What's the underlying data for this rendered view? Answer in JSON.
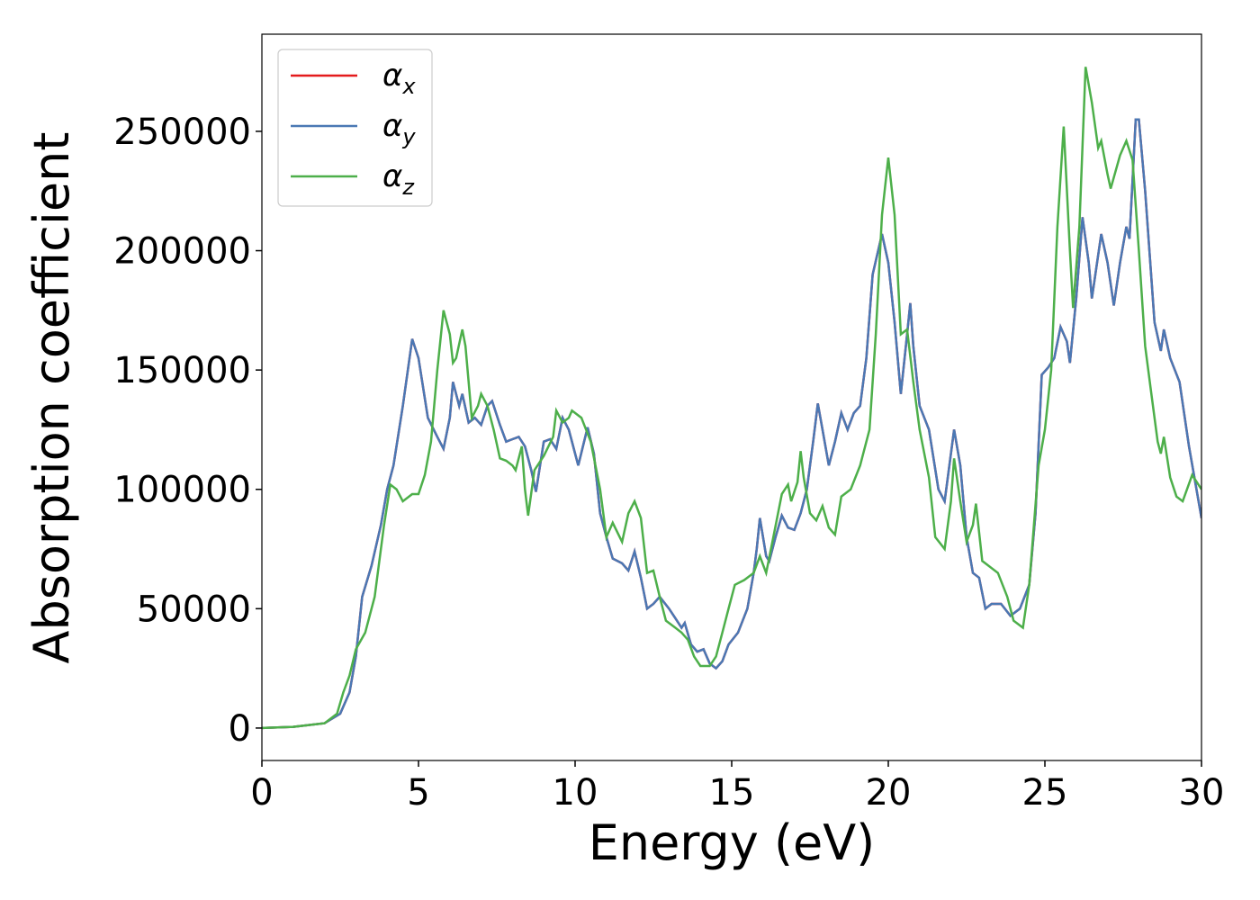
{
  "chart_data": {
    "type": "line",
    "xlabel": "Energy (eV)",
    "ylabel": "Absorption coefficient",
    "xlim": [
      0,
      30
    ],
    "xticks": [
      0,
      5,
      10,
      15,
      20,
      25,
      30
    ],
    "ylim": [
      -13600,
      290700
    ],
    "yticks": [
      0,
      50000,
      100000,
      150000,
      200000,
      250000
    ],
    "legend": "upper left",
    "series": [
      {
        "name": "αx",
        "color": "#e41a1c",
        "x": [
          0,
          1,
          2,
          2.5,
          2.8,
          3.0,
          3.2,
          3.5,
          3.8,
          4.0,
          4.2,
          4.5,
          4.8,
          5.0,
          5.3,
          5.6,
          5.8,
          6.0,
          6.1,
          6.3,
          6.4,
          6.6,
          6.8,
          7.0,
          7.2,
          7.35,
          7.6,
          7.8,
          8.0,
          8.2,
          8.4,
          8.6,
          8.75,
          9.0,
          9.2,
          9.4,
          9.6,
          9.8,
          10.0,
          10.1,
          10.4,
          10.6,
          10.8,
          11.0,
          11.2,
          11.5,
          11.7,
          11.9,
          12.1,
          12.3,
          12.5,
          12.7,
          13.0,
          13.2,
          13.4,
          13.5,
          13.7,
          13.9,
          14.1,
          14.3,
          14.5,
          14.7,
          14.9,
          15.2,
          15.5,
          15.7,
          15.8,
          15.9,
          16.1,
          16.2,
          16.4,
          16.6,
          16.8,
          17.0,
          17.2,
          17.4,
          17.6,
          17.75,
          17.9,
          18.1,
          18.3,
          18.5,
          18.7,
          18.9,
          19.1,
          19.3,
          19.5,
          19.8,
          20.0,
          20.2,
          20.4,
          20.6,
          20.7,
          20.8,
          21.0,
          21.3,
          21.6,
          21.8,
          22.0,
          22.1,
          22.3,
          22.5,
          22.7,
          22.9,
          23.1,
          23.3,
          23.6,
          23.9,
          24.2,
          24.5,
          24.7,
          24.9,
          25.1,
          25.3,
          25.5,
          25.7,
          25.8,
          26.0,
          26.2,
          26.4,
          26.5,
          26.8,
          27.0,
          27.2,
          27.4,
          27.6,
          27.7,
          27.9,
          28.0,
          28.2,
          28.5,
          28.7,
          28.8,
          29.0,
          29.3,
          29.6,
          30
        ],
        "values": [
          0,
          500,
          2000,
          6000,
          15000,
          30000,
          55000,
          68000,
          85000,
          100000,
          110000,
          135000,
          163000,
          155000,
          130000,
          122000,
          117000,
          130000,
          145000,
          135000,
          140000,
          128000,
          130000,
          127000,
          135000,
          137000,
          127000,
          120000,
          121000,
          122000,
          118000,
          108000,
          99000,
          120000,
          121000,
          117000,
          130000,
          125000,
          115000,
          110000,
          126000,
          115000,
          90000,
          80000,
          71000,
          69000,
          66000,
          74000,
          63000,
          50000,
          52000,
          55000,
          50000,
          46000,
          42000,
          44000,
          35000,
          32000,
          33000,
          27000,
          25000,
          28000,
          35000,
          40000,
          50000,
          65000,
          75000,
          88000,
          72000,
          70000,
          80000,
          89000,
          84000,
          83000,
          90000,
          100000,
          120000,
          136000,
          125000,
          110000,
          120000,
          132000,
          125000,
          132000,
          135000,
          155000,
          190000,
          207000,
          195000,
          170000,
          140000,
          165000,
          178000,
          160000,
          135000,
          125000,
          100000,
          95000,
          115000,
          125000,
          110000,
          80000,
          65000,
          63000,
          50000,
          52000,
          52000,
          47000,
          50000,
          60000,
          90000,
          148000,
          151000,
          155000,
          168000,
          162000,
          153000,
          180000,
          214000,
          195000,
          180000,
          207000,
          195000,
          177000,
          195000,
          210000,
          205000,
          255000,
          255000,
          225000,
          170000,
          158000,
          167000,
          155000,
          145000,
          118000,
          88000
        ]
      },
      {
        "name": "αy",
        "color": "#4a78b4",
        "x": [
          0,
          1,
          2,
          2.5,
          2.8,
          3.0,
          3.2,
          3.5,
          3.8,
          4.0,
          4.2,
          4.5,
          4.8,
          5.0,
          5.3,
          5.6,
          5.8,
          6.0,
          6.1,
          6.3,
          6.4,
          6.6,
          6.8,
          7.0,
          7.2,
          7.35,
          7.6,
          7.8,
          8.0,
          8.2,
          8.4,
          8.6,
          8.75,
          9.0,
          9.2,
          9.4,
          9.6,
          9.8,
          10.0,
          10.1,
          10.4,
          10.6,
          10.8,
          11.0,
          11.2,
          11.5,
          11.7,
          11.9,
          12.1,
          12.3,
          12.5,
          12.7,
          13.0,
          13.2,
          13.4,
          13.5,
          13.7,
          13.9,
          14.1,
          14.3,
          14.5,
          14.7,
          14.9,
          15.2,
          15.5,
          15.7,
          15.8,
          15.9,
          16.1,
          16.2,
          16.4,
          16.6,
          16.8,
          17.0,
          17.2,
          17.4,
          17.6,
          17.75,
          17.9,
          18.1,
          18.3,
          18.5,
          18.7,
          18.9,
          19.1,
          19.3,
          19.5,
          19.8,
          20.0,
          20.2,
          20.4,
          20.6,
          20.7,
          20.8,
          21.0,
          21.3,
          21.6,
          21.8,
          22.0,
          22.1,
          22.3,
          22.5,
          22.7,
          22.9,
          23.1,
          23.3,
          23.6,
          23.9,
          24.2,
          24.5,
          24.7,
          24.9,
          25.1,
          25.3,
          25.5,
          25.7,
          25.8,
          26.0,
          26.2,
          26.4,
          26.5,
          26.8,
          27.0,
          27.2,
          27.4,
          27.6,
          27.7,
          27.9,
          28.0,
          28.2,
          28.5,
          28.7,
          28.8,
          29.0,
          29.3,
          29.6,
          30
        ],
        "values": [
          0,
          500,
          2000,
          6000,
          15000,
          30000,
          55000,
          68000,
          85000,
          100000,
          110000,
          135000,
          163000,
          155000,
          130000,
          122000,
          117000,
          130000,
          145000,
          135000,
          140000,
          128000,
          130000,
          127000,
          135000,
          137000,
          127000,
          120000,
          121000,
          122000,
          118000,
          108000,
          99000,
          120000,
          121000,
          117000,
          130000,
          125000,
          115000,
          110000,
          126000,
          115000,
          90000,
          80000,
          71000,
          69000,
          66000,
          74000,
          63000,
          50000,
          52000,
          55000,
          50000,
          46000,
          42000,
          44000,
          35000,
          32000,
          33000,
          27000,
          25000,
          28000,
          35000,
          40000,
          50000,
          65000,
          75000,
          88000,
          72000,
          70000,
          80000,
          89000,
          84000,
          83000,
          90000,
          100000,
          120000,
          136000,
          125000,
          110000,
          120000,
          132000,
          125000,
          132000,
          135000,
          155000,
          190000,
          207000,
          195000,
          170000,
          140000,
          165000,
          178000,
          160000,
          135000,
          125000,
          100000,
          95000,
          115000,
          125000,
          110000,
          80000,
          65000,
          63000,
          50000,
          52000,
          52000,
          47000,
          50000,
          60000,
          90000,
          148000,
          151000,
          155000,
          168000,
          162000,
          153000,
          180000,
          214000,
          195000,
          180000,
          207000,
          195000,
          177000,
          195000,
          210000,
          205000,
          255000,
          255000,
          225000,
          170000,
          158000,
          167000,
          155000,
          145000,
          118000,
          88000
        ]
      },
      {
        "name": "αz",
        "color": "#4daf4a",
        "x": [
          0,
          1,
          2,
          2.4,
          2.6,
          2.8,
          3.0,
          3.3,
          3.6,
          3.9,
          4.1,
          4.3,
          4.5,
          4.8,
          5.0,
          5.2,
          5.4,
          5.6,
          5.8,
          6.0,
          6.1,
          6.2,
          6.4,
          6.5,
          6.7,
          6.9,
          7.0,
          7.2,
          7.4,
          7.6,
          7.8,
          8.0,
          8.1,
          8.3,
          8.4,
          8.5,
          8.7,
          9.0,
          9.3,
          9.4,
          9.6,
          9.8,
          9.9,
          10.2,
          10.5,
          10.8,
          11.0,
          11.2,
          11.5,
          11.7,
          11.9,
          12.1,
          12.3,
          12.5,
          12.7,
          12.9,
          13.2,
          13.4,
          13.6,
          13.8,
          14.0,
          14.3,
          14.5,
          14.7,
          14.9,
          15.1,
          15.4,
          15.7,
          15.9,
          16.1,
          16.3,
          16.6,
          16.8,
          16.9,
          17.1,
          17.2,
          17.3,
          17.5,
          17.7,
          17.9,
          18.1,
          18.3,
          18.5,
          18.8,
          19.1,
          19.4,
          19.6,
          19.8,
          20.0,
          20.2,
          20.4,
          20.6,
          20.8,
          21.0,
          21.3,
          21.5,
          21.8,
          22.0,
          22.1,
          22.3,
          22.5,
          22.7,
          22.8,
          23.0,
          23.2,
          23.5,
          23.8,
          24.0,
          24.3,
          24.5,
          24.8,
          25.0,
          25.2,
          25.4,
          25.6,
          25.8,
          25.9,
          26.1,
          26.3,
          26.5,
          26.7,
          26.8,
          27.0,
          27.1,
          27.4,
          27.6,
          27.8,
          28.0,
          28.2,
          28.4,
          28.6,
          28.7,
          28.8,
          29.0,
          29.2,
          29.4,
          29.7,
          30
        ],
        "values": [
          0,
          500,
          2000,
          6000,
          15000,
          22000,
          33000,
          40000,
          55000,
          85000,
          102000,
          100000,
          95000,
          98000,
          98000,
          106000,
          120000,
          150000,
          175000,
          165000,
          153000,
          155000,
          167000,
          160000,
          130000,
          135000,
          140000,
          135000,
          125000,
          113000,
          112000,
          110000,
          108000,
          118000,
          100000,
          89000,
          108000,
          114000,
          122000,
          133000,
          128000,
          130000,
          133000,
          130000,
          120000,
          100000,
          80000,
          86000,
          78000,
          90000,
          95000,
          88000,
          65000,
          66000,
          55000,
          45000,
          42000,
          40000,
          37000,
          30000,
          26000,
          26000,
          30000,
          40000,
          50000,
          60000,
          62000,
          65000,
          72000,
          65000,
          78000,
          98000,
          102000,
          95000,
          103000,
          116000,
          105000,
          90000,
          87000,
          93000,
          84000,
          81000,
          97000,
          100000,
          110000,
          125000,
          165000,
          215000,
          239000,
          215000,
          165000,
          167000,
          145000,
          125000,
          105000,
          80000,
          75000,
          95000,
          113000,
          95000,
          78000,
          85000,
          94000,
          70000,
          68000,
          65000,
          55000,
          45000,
          42000,
          60000,
          110000,
          125000,
          150000,
          210000,
          252000,
          200000,
          176000,
          210000,
          277000,
          262000,
          243000,
          246000,
          232000,
          226000,
          240000,
          246000,
          238000,
          200000,
          160000,
          140000,
          120000,
          115000,
          122000,
          105000,
          97000,
          95000,
          106000,
          100000
        ]
      }
    ]
  }
}
